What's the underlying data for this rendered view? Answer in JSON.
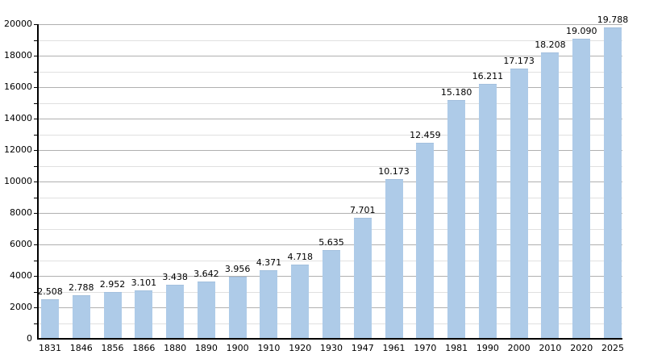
{
  "chart_data": {
    "type": "bar",
    "title": "",
    "xlabel": "",
    "ylabel": "",
    "categories": [
      "1831",
      "1846",
      "1856",
      "1866",
      "1880",
      "1890",
      "1900",
      "1910",
      "1920",
      "1930",
      "1947",
      "1961",
      "1970",
      "1981",
      "1990",
      "2000",
      "2010",
      "2020",
      "2025"
    ],
    "values": [
      2508,
      2788,
      2952,
      3101,
      3438,
      3642,
      3956,
      4371,
      4718,
      5635,
      7701,
      10173,
      12459,
      15180,
      16211,
      17173,
      18208,
      19090,
      19788
    ],
    "value_labels": [
      "2.508",
      "2.788",
      "2.952",
      "3.101",
      "3.438",
      "3.642",
      "3.956",
      "4.371",
      "4.718",
      "5.635",
      "7.701",
      "10.173",
      "12.459",
      "15.180",
      "16.211",
      "17.173",
      "18.208",
      "19.090",
      "19.788"
    ],
    "ylim": [
      0,
      20000
    ],
    "y_major_step": 2000,
    "y_minor_step": 1000,
    "y_tick_labels": [
      "0",
      "2000",
      "4000",
      "6000",
      "8000",
      "10000",
      "12000",
      "14000",
      "16000",
      "18000",
      "20000"
    ],
    "grid": true,
    "legend": false,
    "colors": {
      "bar_fill": "#aecbe8",
      "bar_edge": "#a3c0de",
      "major_grid": "#b0b0b0",
      "minor_grid": "#e0e0e0",
      "axis": "#000000",
      "text": "#000000",
      "background": "#ffffff"
    }
  }
}
